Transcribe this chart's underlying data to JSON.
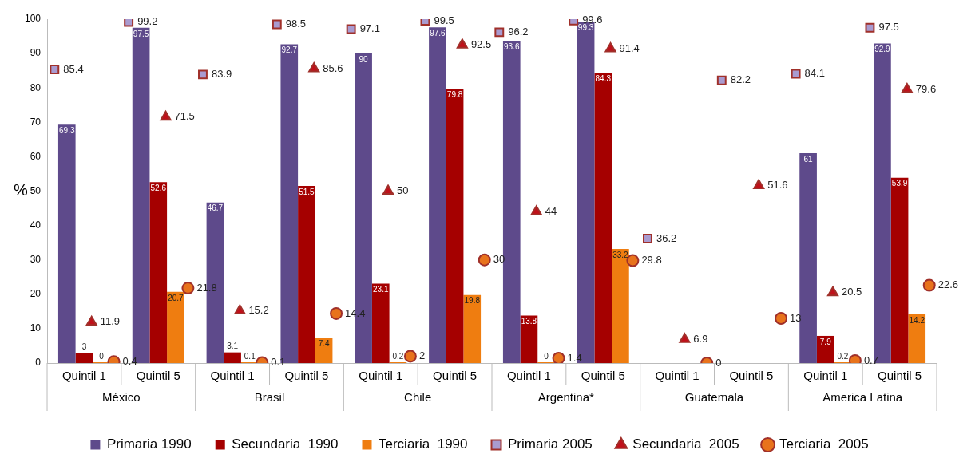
{
  "chart_data": {
    "type": "bar",
    "ylabel": "%",
    "categories": [
      "Quintil 1",
      "Quintil 5",
      "Quintil 1",
      "Quintil 5",
      "Quintil 1",
      "Quintil 5",
      "Quintil 1",
      "Quintil 5",
      "Quintil 1",
      "Quintil 5",
      "Quintil 1",
      "Quintil 5"
    ],
    "annotations": [
      "México",
      "Brasil",
      "Chile",
      "Argentina*",
      "Guatemala",
      "America Latina"
    ],
    "ylim": [
      0,
      100
    ],
    "yticks": [
      0,
      10,
      20,
      30,
      40,
      50,
      60,
      70,
      80,
      90,
      100
    ],
    "grid": false,
    "legend": "bottom",
    "data_labels": true,
    "series": [
      {
        "name": "Primaria 1990",
        "type": "bar",
        "color": "#5e4a8b",
        "values": [
          69.3,
          97.5,
          46.7,
          92.7,
          90,
          97.6,
          93.6,
          99.3,
          null,
          null,
          61,
          92.9
        ]
      },
      {
        "name": "Secundaria  1990",
        "type": "bar",
        "color": "#a50000",
        "values": [
          3,
          52.6,
          3.1,
          51.5,
          23.1,
          79.8,
          13.8,
          84.3,
          null,
          null,
          7.9,
          53.9
        ]
      },
      {
        "name": "Terciaria  1990",
        "type": "bar",
        "color": "#ef7d10",
        "values": [
          0,
          20.7,
          0.1,
          7.4,
          0.2,
          19.8,
          0,
          33.2,
          null,
          null,
          0.2,
          14.2
        ]
      },
      {
        "name": "Primaria 2005",
        "type": "scatter",
        "marker": "square",
        "color": "#a99bd0",
        "values": [
          85.4,
          99.2,
          83.9,
          98.5,
          97.1,
          99.5,
          96.2,
          99.6,
          36.2,
          82.2,
          84.1,
          97.5
        ]
      },
      {
        "name": "Secundaria  2005",
        "type": "scatter",
        "marker": "triangle",
        "color": "#c0101a",
        "values": [
          11.9,
          71.5,
          15.2,
          85.6,
          50,
          92.5,
          44,
          91.4,
          6.9,
          51.6,
          20.5,
          79.6
        ]
      },
      {
        "name": "Terciaria  2005",
        "type": "scatter",
        "marker": "circle",
        "color": "#e8731c",
        "values": [
          0.4,
          21.8,
          0.1,
          14.4,
          2,
          30,
          1.4,
          29.8,
          0,
          13,
          0.7,
          22.6
        ]
      }
    ]
  }
}
